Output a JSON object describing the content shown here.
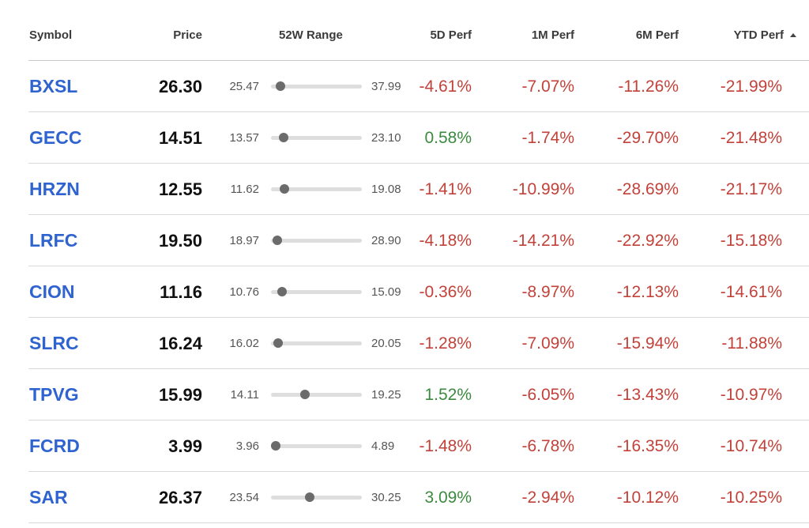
{
  "headers": {
    "symbol": "Symbol",
    "price": "Price",
    "range": "52W Range",
    "perf_5d": "5D Perf",
    "perf_1m": "1M Perf",
    "perf_6m": "6M Perf",
    "perf_ytd": "YTD Perf",
    "sort_icon": "sort-ascending-icon"
  },
  "colors": {
    "symbol_link": "#2f63cf",
    "negative": "#c2423a",
    "positive": "#3c8a3f",
    "range_dot": "#6b6b6b"
  },
  "rows": [
    {
      "symbol": "BXSL",
      "price": "26.30",
      "low": "25.47",
      "high": "37.99",
      "range_position": 0.1,
      "d5": "-4.61%",
      "m1": "-7.07%",
      "m6": "-11.26%",
      "ytd": "-21.99%"
    },
    {
      "symbol": "GECC",
      "price": "14.51",
      "low": "13.57",
      "high": "23.10",
      "range_position": 0.14,
      "d5": "0.58%",
      "m1": "-1.74%",
      "m6": "-29.70%",
      "ytd": "-21.48%"
    },
    {
      "symbol": "HRZN",
      "price": "12.55",
      "low": "11.62",
      "high": "19.08",
      "range_position": 0.15,
      "d5": "-1.41%",
      "m1": "-10.99%",
      "m6": "-28.69%",
      "ytd": "-21.17%"
    },
    {
      "symbol": "LRFC",
      "price": "19.50",
      "low": "18.97",
      "high": "28.90",
      "range_position": 0.07,
      "d5": "-4.18%",
      "m1": "-14.21%",
      "m6": "-22.92%",
      "ytd": "-15.18%"
    },
    {
      "symbol": "CION",
      "price": "11.16",
      "low": "10.76",
      "high": "15.09",
      "range_position": 0.12,
      "d5": "-0.36%",
      "m1": "-8.97%",
      "m6": "-12.13%",
      "ytd": "-14.61%"
    },
    {
      "symbol": "SLRC",
      "price": "16.24",
      "low": "16.02",
      "high": "20.05",
      "range_position": 0.08,
      "d5": "-1.28%",
      "m1": "-7.09%",
      "m6": "-15.94%",
      "ytd": "-11.88%"
    },
    {
      "symbol": "TPVG",
      "price": "15.99",
      "low": "14.11",
      "high": "19.25",
      "range_position": 0.37,
      "d5": "1.52%",
      "m1": "-6.05%",
      "m6": "-13.43%",
      "ytd": "-10.97%"
    },
    {
      "symbol": "FCRD",
      "price": "3.99",
      "low": "3.96",
      "high": "4.89",
      "range_position": 0.05,
      "d5": "-1.48%",
      "m1": "-6.78%",
      "m6": "-16.35%",
      "ytd": "-10.74%"
    },
    {
      "symbol": "SAR",
      "price": "26.37",
      "low": "23.54",
      "high": "30.25",
      "range_position": 0.43,
      "d5": "3.09%",
      "m1": "-2.94%",
      "m6": "-10.12%",
      "ytd": "-10.25%"
    }
  ]
}
